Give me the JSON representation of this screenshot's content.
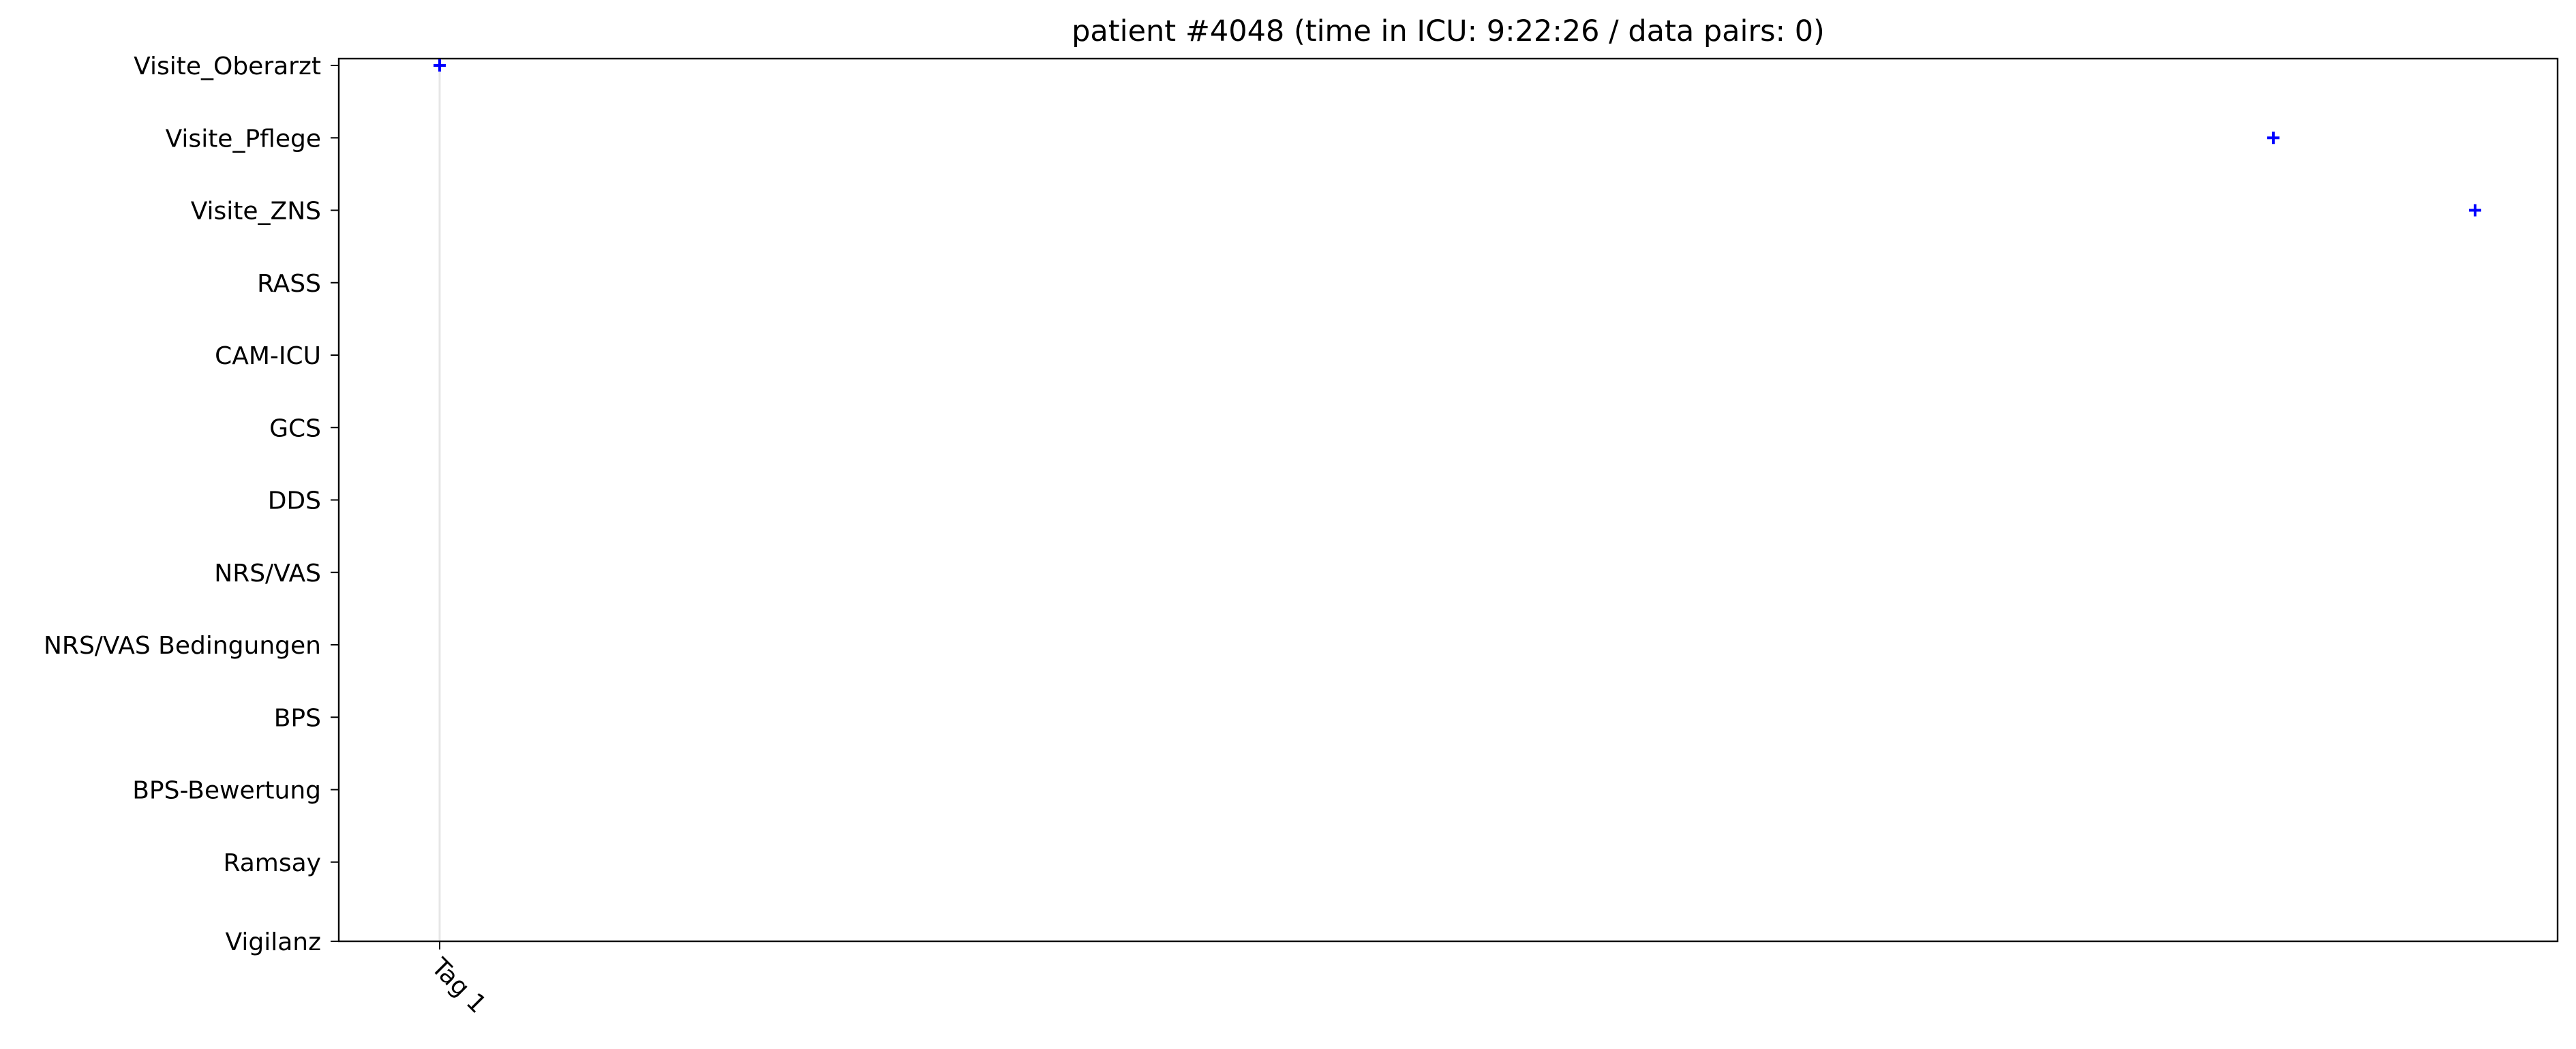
{
  "chart_data": {
    "type": "scatter",
    "title": "patient #4048 (time in ICU: 9:22:26 / data pairs: 0)",
    "categories": [
      "Visite_Oberarzt",
      "Visite_Pflege",
      "Visite_ZNS",
      "RASS",
      "CAM-ICU",
      "GCS",
      "DDS",
      "NRS/VAS",
      "NRS/VAS Bedingungen",
      "BPS",
      "BPS-Bewertung",
      "Ramsay",
      "Vigilanz"
    ],
    "x_unit": "hours in ICU",
    "xlim": [
      -1.1,
      23.1
    ],
    "x_ticks": [
      {
        "label": "Tag 1",
        "value": 0
      }
    ],
    "day_lines": [
      0
    ],
    "marker": "+",
    "marker_color": "#0000ff",
    "series": [
      {
        "points": [
          {
            "category": "Visite_Oberarzt",
            "x": 0.0
          },
          {
            "category": "Visite_Pflege",
            "x": 20.0
          },
          {
            "category": "Visite_ZNS",
            "x": 22.2
          }
        ]
      }
    ]
  }
}
